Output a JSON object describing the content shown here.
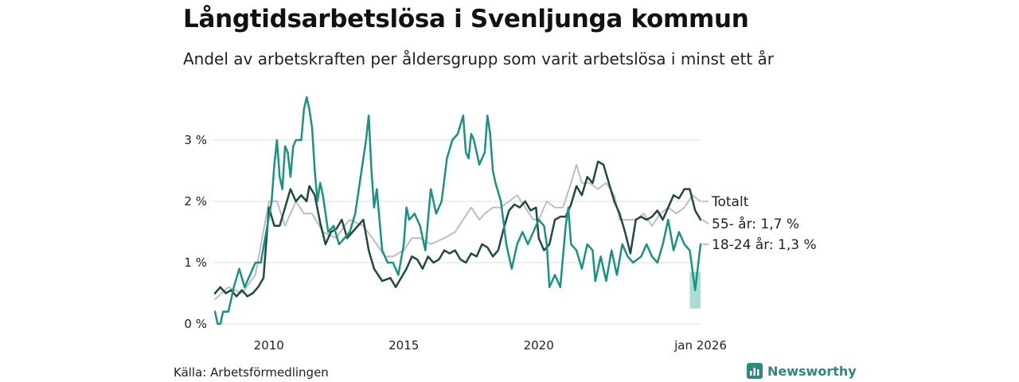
{
  "title": "Långtidsarbetslösa i Svenljunga kommun",
  "subtitle": "Andel av arbetskraften per åldersgrupp som varit arbetslösa i minst ett år",
  "source": "Källa: Arbetsförmedlingen",
  "brand": "Newsworthy",
  "colors": {
    "total": "#bdbcc4",
    "age55": "#1f4a40",
    "age1824": "#1a9283",
    "gridline": "#dddddd",
    "uncertainty": "#8fd0c6"
  },
  "chart_data": {
    "type": "line",
    "x_unit": "year (decimal)",
    "xlim": [
      2008.0,
      2026.0
    ],
    "ylim": [
      0,
      3.8
    ],
    "yticks": [
      {
        "value": 0,
        "label": "0 %"
      },
      {
        "value": 1,
        "label": "1 %"
      },
      {
        "value": 2,
        "label": "2 %"
      },
      {
        "value": 3,
        "label": "3 %"
      }
    ],
    "xticks": [
      {
        "value": 2010,
        "label": "2010"
      },
      {
        "value": 2015,
        "label": "2015"
      },
      {
        "value": 2020,
        "label": "2020"
      },
      {
        "value": 2026,
        "label": "jan 2026"
      }
    ],
    "series": [
      {
        "name": "Totalt",
        "label": "Totalt",
        "color_key": "total",
        "width": 2,
        "points": [
          [
            2008.0,
            0.4
          ],
          [
            2008.5,
            0.6
          ],
          [
            2009.0,
            0.5
          ],
          [
            2009.5,
            0.8
          ],
          [
            2010.0,
            2.0
          ],
          [
            2010.3,
            2.0
          ],
          [
            2010.6,
            1.6
          ],
          [
            2011.0,
            2.0
          ],
          [
            2011.3,
            1.8
          ],
          [
            2011.6,
            1.8
          ],
          [
            2012.0,
            1.5
          ],
          [
            2012.5,
            1.4
          ],
          [
            2012.8,
            1.6
          ],
          [
            2013.0,
            1.7
          ],
          [
            2013.5,
            1.6
          ],
          [
            2014.0,
            1.3
          ],
          [
            2014.3,
            1.1
          ],
          [
            2014.6,
            1.1
          ],
          [
            2015.0,
            1.2
          ],
          [
            2015.3,
            1.4
          ],
          [
            2015.6,
            1.4
          ],
          [
            2016.0,
            1.3
          ],
          [
            2016.5,
            1.4
          ],
          [
            2016.9,
            1.5
          ],
          [
            2017.2,
            1.7
          ],
          [
            2017.5,
            1.9
          ],
          [
            2017.8,
            1.7
          ],
          [
            2018.0,
            1.8
          ],
          [
            2018.3,
            1.9
          ],
          [
            2018.6,
            1.9
          ],
          [
            2018.9,
            2.0
          ],
          [
            2019.2,
            2.1
          ],
          [
            2019.5,
            1.9
          ],
          [
            2019.8,
            1.7
          ],
          [
            2020.0,
            1.7
          ],
          [
            2020.3,
            2.0
          ],
          [
            2020.6,
            1.9
          ],
          [
            2020.9,
            1.9
          ],
          [
            2021.2,
            2.3
          ],
          [
            2021.4,
            2.6
          ],
          [
            2021.6,
            2.3
          ],
          [
            2021.9,
            2.3
          ],
          [
            2022.2,
            2.2
          ],
          [
            2022.5,
            2.3
          ],
          [
            2022.8,
            2.1
          ],
          [
            2023.0,
            1.7
          ],
          [
            2023.3,
            1.7
          ],
          [
            2023.6,
            1.7
          ],
          [
            2023.9,
            1.8
          ],
          [
            2024.2,
            1.6
          ],
          [
            2024.5,
            1.8
          ],
          [
            2024.8,
            1.9
          ],
          [
            2025.1,
            1.8
          ],
          [
            2025.4,
            1.9
          ],
          [
            2025.7,
            2.1
          ],
          [
            2026.0,
            2.0
          ]
        ]
      },
      {
        "name": "55- år",
        "label": "55- år: 1,7 %",
        "color_key": "age55",
        "width": 2.5,
        "points": [
          [
            2008.0,
            0.5
          ],
          [
            2008.2,
            0.6
          ],
          [
            2008.4,
            0.5
          ],
          [
            2008.6,
            0.55
          ],
          [
            2008.8,
            0.45
          ],
          [
            2009.0,
            0.55
          ],
          [
            2009.2,
            0.45
          ],
          [
            2009.4,
            0.5
          ],
          [
            2009.6,
            0.6
          ],
          [
            2009.8,
            0.75
          ],
          [
            2010.0,
            1.9
          ],
          [
            2010.2,
            1.6
          ],
          [
            2010.4,
            1.6
          ],
          [
            2010.6,
            1.9
          ],
          [
            2010.8,
            2.2
          ],
          [
            2011.0,
            2.0
          ],
          [
            2011.2,
            2.1
          ],
          [
            2011.4,
            2.0
          ],
          [
            2011.5,
            2.25
          ],
          [
            2011.7,
            2.1
          ],
          [
            2011.9,
            1.65
          ],
          [
            2012.1,
            1.3
          ],
          [
            2012.3,
            1.5
          ],
          [
            2012.5,
            1.55
          ],
          [
            2012.7,
            1.7
          ],
          [
            2012.9,
            1.4
          ],
          [
            2013.1,
            1.5
          ],
          [
            2013.3,
            1.6
          ],
          [
            2013.5,
            1.7
          ],
          [
            2013.7,
            1.2
          ],
          [
            2013.9,
            0.9
          ],
          [
            2014.2,
            0.7
          ],
          [
            2014.5,
            0.75
          ],
          [
            2014.7,
            0.6
          ],
          [
            2014.9,
            0.75
          ],
          [
            2015.1,
            0.9
          ],
          [
            2015.3,
            1.1
          ],
          [
            2015.5,
            1.05
          ],
          [
            2015.7,
            0.9
          ],
          [
            2015.9,
            1.1
          ],
          [
            2016.1,
            1.0
          ],
          [
            2016.3,
            1.05
          ],
          [
            2016.5,
            1.2
          ],
          [
            2016.7,
            1.15
          ],
          [
            2016.9,
            1.2
          ],
          [
            2017.1,
            1.05
          ],
          [
            2017.3,
            1.0
          ],
          [
            2017.5,
            1.15
          ],
          [
            2017.7,
            1.1
          ],
          [
            2017.9,
            1.3
          ],
          [
            2018.1,
            1.25
          ],
          [
            2018.3,
            1.1
          ],
          [
            2018.5,
            1.2
          ],
          [
            2018.7,
            1.55
          ],
          [
            2018.9,
            1.85
          ],
          [
            2019.1,
            1.95
          ],
          [
            2019.3,
            1.9
          ],
          [
            2019.5,
            2.0
          ],
          [
            2019.7,
            1.85
          ],
          [
            2019.9,
            1.9
          ],
          [
            2020.0,
            1.4
          ],
          [
            2020.2,
            1.2
          ],
          [
            2020.4,
            1.3
          ],
          [
            2020.6,
            1.7
          ],
          [
            2020.8,
            1.75
          ],
          [
            2021.0,
            1.75
          ],
          [
            2021.2,
            1.95
          ],
          [
            2021.4,
            2.25
          ],
          [
            2021.6,
            2.1
          ],
          [
            2021.8,
            2.4
          ],
          [
            2022.0,
            2.3
          ],
          [
            2022.2,
            2.65
          ],
          [
            2022.4,
            2.6
          ],
          [
            2022.6,
            2.3
          ],
          [
            2022.8,
            2.0
          ],
          [
            2023.0,
            1.8
          ],
          [
            2023.2,
            1.5
          ],
          [
            2023.4,
            1.15
          ],
          [
            2023.6,
            1.7
          ],
          [
            2023.8,
            1.75
          ],
          [
            2024.0,
            1.7
          ],
          [
            2024.2,
            1.75
          ],
          [
            2024.4,
            1.85
          ],
          [
            2024.6,
            1.7
          ],
          [
            2024.8,
            1.9
          ],
          [
            2025.0,
            2.1
          ],
          [
            2025.2,
            2.05
          ],
          [
            2025.4,
            2.2
          ],
          [
            2025.6,
            2.2
          ],
          [
            2025.8,
            1.85
          ],
          [
            2026.0,
            1.7
          ]
        ]
      },
      {
        "name": "18-24 år",
        "label": "18-24 år: 1,3 %",
        "color_key": "age1824",
        "width": 2.5,
        "points": [
          [
            2008.0,
            0.2
          ],
          [
            2008.1,
            0.0
          ],
          [
            2008.2,
            0.0
          ],
          [
            2008.3,
            0.2
          ],
          [
            2008.5,
            0.2
          ],
          [
            2008.7,
            0.6
          ],
          [
            2008.9,
            0.9
          ],
          [
            2009.1,
            0.6
          ],
          [
            2009.3,
            0.8
          ],
          [
            2009.5,
            1.0
          ],
          [
            2009.7,
            1.0
          ],
          [
            2009.9,
            1.5
          ],
          [
            2010.1,
            2.0
          ],
          [
            2010.2,
            2.6
          ],
          [
            2010.3,
            3.0
          ],
          [
            2010.4,
            2.4
          ],
          [
            2010.5,
            2.2
          ],
          [
            2010.6,
            2.9
          ],
          [
            2010.7,
            2.8
          ],
          [
            2010.8,
            2.4
          ],
          [
            2010.9,
            2.9
          ],
          [
            2011.0,
            3.0
          ],
          [
            2011.2,
            3.0
          ],
          [
            2011.3,
            3.5
          ],
          [
            2011.4,
            3.7
          ],
          [
            2011.5,
            3.5
          ],
          [
            2011.6,
            3.2
          ],
          [
            2011.7,
            2.5
          ],
          [
            2011.8,
            2.0
          ],
          [
            2011.9,
            2.3
          ],
          [
            2012.0,
            2.1
          ],
          [
            2012.2,
            1.5
          ],
          [
            2012.4,
            1.6
          ],
          [
            2012.6,
            1.3
          ],
          [
            2012.8,
            1.4
          ],
          [
            2013.0,
            1.5
          ],
          [
            2013.2,
            1.8
          ],
          [
            2013.4,
            2.4
          ],
          [
            2013.6,
            3.0
          ],
          [
            2013.7,
            3.4
          ],
          [
            2013.8,
            2.5
          ],
          [
            2013.9,
            1.9
          ],
          [
            2014.0,
            2.2
          ],
          [
            2014.2,
            1.2
          ],
          [
            2014.4,
            1.0
          ],
          [
            2014.6,
            1.0
          ],
          [
            2014.8,
            0.8
          ],
          [
            2015.0,
            1.3
          ],
          [
            2015.1,
            1.9
          ],
          [
            2015.2,
            1.7
          ],
          [
            2015.4,
            1.8
          ],
          [
            2015.6,
            1.6
          ],
          [
            2015.8,
            1.2
          ],
          [
            2016.0,
            2.2
          ],
          [
            2016.2,
            1.8
          ],
          [
            2016.4,
            2.0
          ],
          [
            2016.6,
            2.7
          ],
          [
            2016.8,
            3.0
          ],
          [
            2017.0,
            3.1
          ],
          [
            2017.2,
            3.4
          ],
          [
            2017.3,
            2.8
          ],
          [
            2017.4,
            2.7
          ],
          [
            2017.5,
            3.1
          ],
          [
            2017.6,
            3.0
          ],
          [
            2017.8,
            2.6
          ],
          [
            2018.0,
            2.8
          ],
          [
            2018.1,
            3.4
          ],
          [
            2018.2,
            3.1
          ],
          [
            2018.3,
            2.5
          ],
          [
            2018.4,
            2.3
          ],
          [
            2018.6,
            2.0
          ],
          [
            2018.8,
            1.3
          ],
          [
            2019.0,
            0.9
          ],
          [
            2019.2,
            1.3
          ],
          [
            2019.4,
            1.5
          ],
          [
            2019.6,
            1.3
          ],
          [
            2019.8,
            1.5
          ],
          [
            2020.0,
            1.7
          ],
          [
            2020.2,
            1.6
          ],
          [
            2020.3,
            1.3
          ],
          [
            2020.4,
            0.6
          ],
          [
            2020.6,
            0.8
          ],
          [
            2020.8,
            0.6
          ],
          [
            2021.0,
            1.6
          ],
          [
            2021.1,
            1.9
          ],
          [
            2021.2,
            1.3
          ],
          [
            2021.4,
            1.2
          ],
          [
            2021.6,
            0.9
          ],
          [
            2021.8,
            1.3
          ],
          [
            2022.0,
            1.2
          ],
          [
            2022.1,
            0.7
          ],
          [
            2022.3,
            1.1
          ],
          [
            2022.5,
            0.7
          ],
          [
            2022.7,
            1.2
          ],
          [
            2022.9,
            0.8
          ],
          [
            2023.1,
            1.3
          ],
          [
            2023.3,
            1.1
          ],
          [
            2023.5,
            1.0
          ],
          [
            2023.8,
            1.1
          ],
          [
            2024.0,
            1.3
          ],
          [
            2024.2,
            1.1
          ],
          [
            2024.4,
            1.0
          ],
          [
            2024.6,
            1.3
          ],
          [
            2024.8,
            1.7
          ],
          [
            2025.0,
            1.2
          ],
          [
            2025.2,
            1.5
          ],
          [
            2025.4,
            1.3
          ],
          [
            2025.6,
            1.2
          ],
          [
            2025.8,
            0.55
          ],
          [
            2026.0,
            1.3
          ]
        ]
      }
    ],
    "uncertainty_band": {
      "series": "18-24 år",
      "x": [
        2025.6,
        2026.0
      ],
      "y": [
        0.25,
        0.85
      ]
    }
  }
}
